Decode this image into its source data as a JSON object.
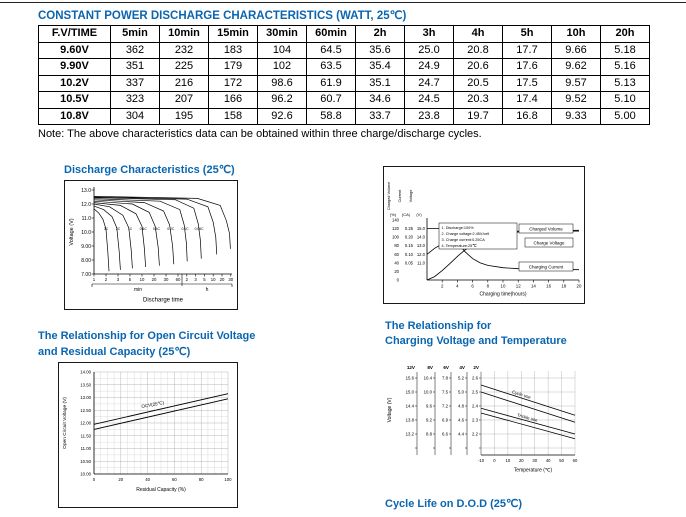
{
  "page": {
    "title": "CONSTANT POWER DISCHARGE CHARACTERISTICS (WATT, 25℃)",
    "note": "Note: The above characteristics data can be obtained within three charge/discharge cycles.",
    "accent_color": "#0a66b0"
  },
  "table": {
    "headers": [
      "F.V/TIME",
      "5min",
      "10min",
      "15min",
      "30min",
      "60min",
      "2h",
      "3h",
      "4h",
      "5h",
      "10h",
      "20h"
    ],
    "rows": [
      [
        "9.60V",
        "362",
        "232",
        "183",
        "104",
        "64.5",
        "35.6",
        "25.0",
        "20.8",
        "17.7",
        "9.66",
        "5.18"
      ],
      [
        "9.90V",
        "351",
        "225",
        "179",
        "102",
        "63.5",
        "35.4",
        "24.9",
        "20.6",
        "17.6",
        "9.62",
        "5.16"
      ],
      [
        "10.2V",
        "337",
        "216",
        "172",
        "98.6",
        "61.9",
        "35.1",
        "24.7",
        "20.5",
        "17.5",
        "9.57",
        "5.13"
      ],
      [
        "10.5V",
        "323",
        "207",
        "166",
        "96.2",
        "60.7",
        "34.6",
        "24.5",
        "20.3",
        "17.4",
        "9.52",
        "5.10"
      ],
      [
        "10.8V",
        "304",
        "195",
        "158",
        "92.6",
        "58.8",
        "33.7",
        "23.8",
        "19.7",
        "16.8",
        "9.33",
        "5.00"
      ]
    ]
  },
  "sections": {
    "discharge": "Discharge Characteristics (25℃)",
    "charge_temp_1": "The Relationship for",
    "charge_temp_2": "Charging Voltage and Temperature",
    "ocv_1": "The Relationship for Open Circuit Voltage",
    "ocv_2": "and Residual Capacity (25℃)",
    "cycle_life": "Cycle Life on D.O.D (25℃)"
  },
  "chart_data": [
    {
      "id": "discharge",
      "type": "line",
      "title": "Discharge Characteristics (25℃)",
      "ylabel": "Voltage (V)",
      "xlabel": "Discharge time",
      "x_unit_groups": [
        "min",
        "h"
      ],
      "y_ticks": [
        "13.0",
        "12.0",
        "11.0",
        "10.0",
        "9.00",
        "8.00",
        "7.00"
      ],
      "x_ticks_min": [
        "1",
        "2",
        "3",
        "5",
        "10",
        "20",
        "30",
        "60"
      ],
      "x_ticks_h": [
        "2",
        "3",
        "5",
        "10",
        "20",
        "30"
      ],
      "rate_labels": [
        [
          "3C",
          1.0
        ],
        [
          "2C",
          2.0
        ],
        [
          "1C",
          3.0
        ],
        [
          "0.6C",
          4.1
        ],
        [
          "0.4C",
          5.2
        ],
        [
          "0.2C",
          6.4
        ],
        [
          "0.1C",
          7.8
        ],
        [
          "0.05C",
          9.4
        ]
      ],
      "curves": [
        {
          "points": [
            [
              0,
              11.65
            ],
            [
              0.4,
              11.35
            ],
            [
              0.75,
              10.9
            ],
            [
              1.0,
              10.2
            ],
            [
              1.15,
              8.6
            ],
            [
              1.25,
              7.2
            ]
          ]
        },
        {
          "points": [
            [
              0,
              11.85
            ],
            [
              0.8,
              11.6
            ],
            [
              1.5,
              11.1
            ],
            [
              1.9,
              10.3
            ],
            [
              2.1,
              8.6
            ],
            [
              2.2,
              7.3
            ]
          ]
        },
        {
          "points": [
            [
              0,
              12.0
            ],
            [
              1.3,
              11.8
            ],
            [
              2.4,
              11.2
            ],
            [
              2.9,
              10.3
            ],
            [
              3.1,
              8.7
            ],
            [
              3.2,
              7.4
            ]
          ]
        },
        {
          "points": [
            [
              0,
              12.1
            ],
            [
              2.2,
              11.9
            ],
            [
              3.5,
              11.3
            ],
            [
              4.0,
              10.4
            ],
            [
              4.2,
              8.8
            ],
            [
              4.3,
              7.5
            ]
          ]
        },
        {
          "points": [
            [
              0,
              12.2
            ],
            [
              3.2,
              12.0
            ],
            [
              4.6,
              11.4
            ],
            [
              5.1,
              10.4
            ],
            [
              5.35,
              8.9
            ],
            [
              5.45,
              7.6
            ]
          ]
        },
        {
          "points": [
            [
              0,
              12.3
            ],
            [
              4.2,
              12.1
            ],
            [
              5.8,
              11.5
            ],
            [
              6.3,
              10.5
            ],
            [
              6.55,
              9.0
            ],
            [
              6.65,
              7.7
            ]
          ]
        },
        {
          "points": [
            [
              0,
              12.38
            ],
            [
              5.5,
              12.2
            ],
            [
              7.2,
              11.6
            ],
            [
              7.7,
              10.5
            ],
            [
              7.95,
              9.2
            ],
            [
              8.05,
              7.9
            ]
          ]
        },
        {
          "points": [
            [
              0,
              12.45
            ],
            [
              6.8,
              12.3
            ],
            [
              8.8,
              11.7
            ],
            [
              9.3,
              10.6
            ],
            [
              9.55,
              9.4
            ],
            [
              9.65,
              8.1
            ]
          ]
        },
        {
          "points": [
            [
              0,
              12.5
            ],
            [
              8.0,
              12.35
            ],
            [
              10.4,
              11.8
            ],
            [
              11.0,
              10.7
            ],
            [
              11.3,
              9.6
            ],
            [
              11.4,
              8.4
            ]
          ]
        },
        {
          "points": [
            [
              0,
              12.55
            ],
            [
              9.2,
              12.4
            ],
            [
              11.8,
              11.9
            ],
            [
              12.5,
              10.8
            ],
            [
              12.85,
              9.9
            ],
            [
              12.95,
              8.8
            ]
          ]
        }
      ]
    },
    {
      "id": "charge",
      "type": "line",
      "xlabel": "Charging time(hours)",
      "x_ticks": [
        "2",
        "4",
        "6",
        "8",
        "10",
        "12",
        "14",
        "16",
        "18",
        "20"
      ],
      "notes": [
        "1. Discharge:100%",
        "2. Charge voltage:2.45V/cell",
        "3. Charge current:0.25CA",
        "4. Temperature:25℃"
      ],
      "axes": {
        "volume": {
          "label": "Charged Volume",
          "unit": "(%)",
          "ticks": [
            "140",
            "120",
            "100",
            "80",
            "60",
            "40",
            "20",
            "0"
          ]
        },
        "current": {
          "label": "Current",
          "unit": "(CA)",
          "ticks": [
            "0.25",
            "0.20",
            "0.15",
            "0.10",
            "0.05"
          ]
        },
        "voltage": {
          "label": "Voltage",
          "unit": "(V)",
          "ticks": [
            "15.0",
            "14.0",
            "13.0",
            "12.0",
            "11.0"
          ]
        }
      },
      "series": [
        {
          "name": "Charged Volume",
          "axis": "pct",
          "points": [
            [
              0,
              0
            ],
            [
              1,
              8
            ],
            [
              2,
              22
            ],
            [
              3,
              38
            ],
            [
              4,
              55
            ],
            [
              5,
              70
            ],
            [
              6,
              83
            ],
            [
              7,
              93
            ],
            [
              8,
              100
            ],
            [
              10,
              108
            ],
            [
              12,
              112
            ],
            [
              16,
              115
            ],
            [
              20,
              116
            ]
          ]
        },
        {
          "name": "Charge Voltage",
          "axis": "v",
          "points": [
            [
              0,
              12.0
            ],
            [
              1,
              12.7
            ],
            [
              2,
              13.2
            ],
            [
              3,
              13.7
            ],
            [
              4,
              14.2
            ],
            [
              5,
              14.55
            ],
            [
              6,
              14.7
            ],
            [
              8,
              14.7
            ],
            [
              12,
              14.7
            ],
            [
              20,
              14.7
            ]
          ]
        },
        {
          "name": "Charging Current",
          "axis": "ca",
          "points": [
            [
              0,
              0.25
            ],
            [
              2.5,
              0.25
            ],
            [
              3,
              0.235
            ],
            [
              4,
              0.17
            ],
            [
              5,
              0.115
            ],
            [
              6,
              0.075
            ],
            [
              7,
              0.05
            ],
            [
              8,
              0.035
            ],
            [
              10,
              0.022
            ],
            [
              12,
              0.016
            ],
            [
              16,
              0.012
            ],
            [
              20,
              0.01
            ]
          ]
        }
      ]
    },
    {
      "id": "ocv",
      "type": "line",
      "title": "The Relationship for Open Circuit Voltage and Residual Capacity (25℃)",
      "ylabel": "Open Circuit Voltage (V)",
      "xlabel": "Residual Capacity (%)",
      "y_ticks": [
        "14.00",
        "13.50",
        "13.00",
        "12.50",
        "12.00",
        "11.50",
        "11.00",
        "10.50",
        "10.00"
      ],
      "x_ticks": [
        "0",
        "20",
        "40",
        "60",
        "80",
        "100"
      ],
      "band": {
        "label": "OCV(25℃)",
        "upper": [
          [
            0,
            11.95
          ],
          [
            100,
            13.15
          ]
        ],
        "lower": [
          [
            0,
            11.75
          ],
          [
            100,
            12.95
          ]
        ]
      }
    },
    {
      "id": "charge_temp",
      "type": "line",
      "title": "The Relationship for Charging Voltage and Temperature",
      "ylabel": "Voltage (V)",
      "xlabel": "Temperature (℃)",
      "column_headers": [
        "12V",
        "8V",
        "6V",
        "4V",
        "2V"
      ],
      "scale_rows": [
        [
          "15.6",
          "10.4",
          "7.8",
          "5.2",
          "2.6"
        ],
        [
          "15.0",
          "10.0",
          "7.5",
          "5.0",
          "2.5"
        ],
        [
          "14.4",
          "9.6",
          "7.2",
          "4.8",
          "2.4"
        ],
        [
          "13.8",
          "9.2",
          "6.9",
          "4.6",
          "2.3"
        ],
        [
          "13.2",
          "8.8",
          "6.6",
          "4.4",
          "2.2"
        ]
      ],
      "x_ticks": [
        "-10",
        "0",
        "10",
        "20",
        "30",
        "40",
        "50",
        "60"
      ],
      "bands": [
        {
          "name": "Cycle use",
          "upper": [
            [
              -10,
              15.3
            ],
            [
              60,
              14.0
            ]
          ],
          "lower": [
            [
              -10,
              15.0
            ],
            [
              60,
              13.7
            ]
          ]
        },
        {
          "name": "Trickle use",
          "upper": [
            [
              -10,
              14.3
            ],
            [
              60,
              13.2
            ]
          ],
          "lower": [
            [
              -10,
              14.1
            ],
            [
              60,
              13.0
            ]
          ]
        }
      ]
    }
  ]
}
